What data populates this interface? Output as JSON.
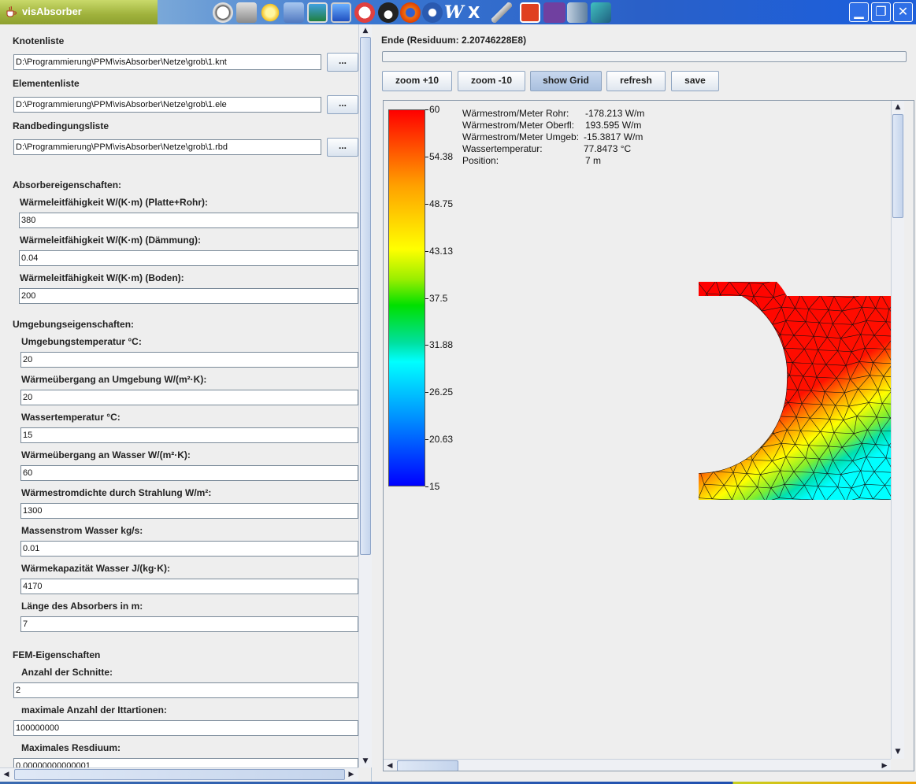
{
  "window": {
    "title": "visAbsorber",
    "minimize_glyph": "▁",
    "restore_glyph": "❐",
    "close_glyph": "✕"
  },
  "left": {
    "knotenliste": {
      "label": "Knotenliste",
      "value": "D:\\Programmierung\\PPM\\visAbsorber\\Netze\\grob\\1.knt",
      "button": "..."
    },
    "elementenliste": {
      "label": "Elementenliste",
      "value": "D:\\Programmierung\\PPM\\visAbsorber\\Netze\\grob\\1.ele",
      "button": "..."
    },
    "randbedingungsliste": {
      "label": "Randbedingungsliste",
      "value": "D:\\Programmierung\\PPM\\visAbsorber\\Netze\\grob\\1.rbd",
      "button": "..."
    },
    "absorber_heading": "Absorbereigenschaften:",
    "absorber": [
      {
        "label": "Wärmeleitfähigkeit W/(K·m)  (Platte+Rohr):",
        "value": "380"
      },
      {
        "label": "Wärmeleitfähigkeit W/(K·m) (Dämmung):",
        "value": "0.04"
      },
      {
        "label": "Wärmeleitfähigkeit W/(K·m) (Boden):",
        "value": "200"
      }
    ],
    "umgebung_heading": "Umgebungseigenschaften:",
    "umgebung": [
      {
        "label": "Umgebungstemperatur °C:",
        "value": "20"
      },
      {
        "label": "Wärmeübergang an Umgebung W/(m²·K):",
        "value": "20"
      },
      {
        "label": "Wassertemperatur °C:",
        "value": "15"
      },
      {
        "label": "Wärmeübergang an Wasser W/(m²·K):",
        "value": "60"
      },
      {
        "label": "Wärmestromdichte durch Strahlung W/m²:",
        "value": "1300"
      },
      {
        "label": "Massenstrom Wasser kg/s:",
        "value": "0.01"
      },
      {
        "label": "Wärmekapazität Wasser J/(kg·K):",
        "value": "4170"
      },
      {
        "label": "Länge des Absorbers in m:",
        "value": "7"
      }
    ],
    "fem_heading": "FEM-Eigenschaften",
    "fem": [
      {
        "label": "Anzahl der Schnitte:",
        "value": "2"
      },
      {
        "label": "maximale Anzahl der Ittartionen:",
        "value": "100000000"
      },
      {
        "label": "Maximales Resdiuum:",
        "value": "0.00000000000001"
      }
    ]
  },
  "right": {
    "status": "Ende (Residuum: 2.20746228E8)",
    "progress": 0,
    "buttons": {
      "zoom_in": "zoom +10",
      "zoom_out": "zoom -10",
      "show_grid": "show Grid",
      "refresh": "refresh",
      "save": "save"
    },
    "colorbar_ticks": [
      "60",
      "54.38",
      "48.75",
      "43.13",
      "37.5",
      "31.88",
      "26.25",
      "20.63",
      "15"
    ],
    "info": [
      {
        "label": "Wärmestrom/Meter Rohr:",
        "value": "-178.213 W/m"
      },
      {
        "label": "Wärmestrom/Meter Oberfl:",
        "value": "193.595 W/m"
      },
      {
        "label": "Wärmestrom/Meter Umgeb:",
        "value": "-15.3817 W/m"
      },
      {
        "label": "Wassertemperatur:",
        "value": "77.8473 °C"
      },
      {
        "label": "Position:",
        "value": "7 m"
      }
    ]
  },
  "scroll_glyphs": {
    "up": "▲",
    "down": "▼",
    "left": "◀",
    "right": "▶"
  }
}
